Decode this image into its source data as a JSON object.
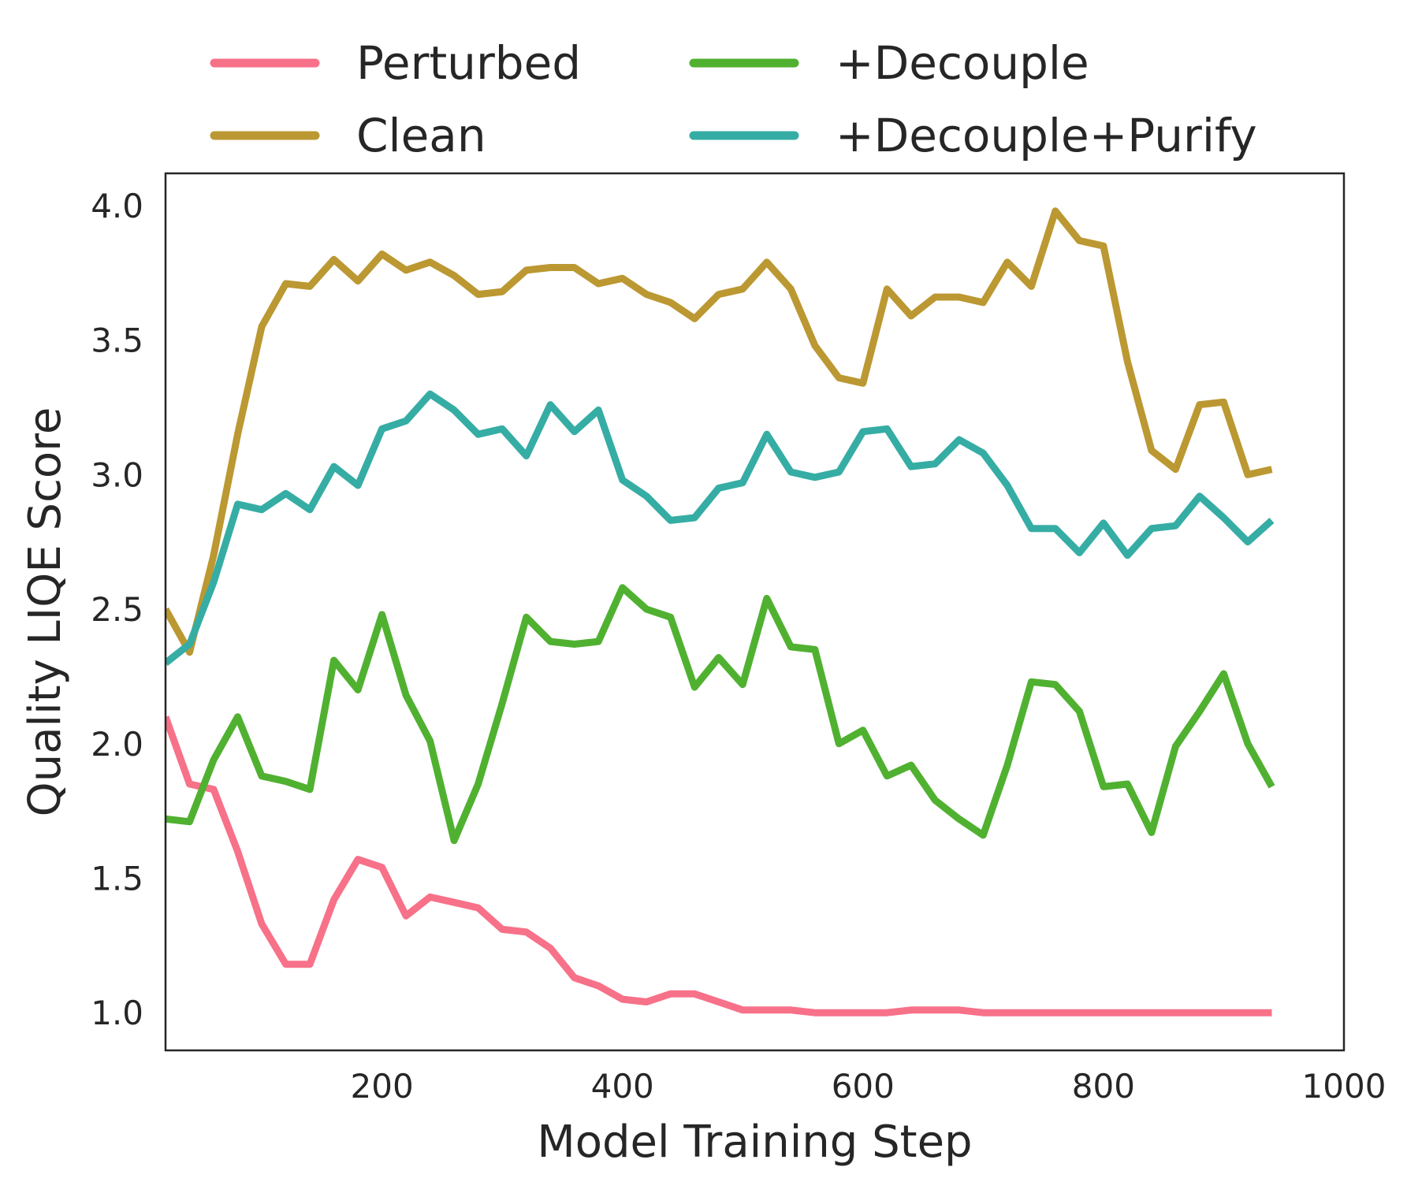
{
  "chart_data": {
    "type": "line",
    "title": "",
    "xlabel": "Model Training Step",
    "ylabel": "Quality LIQE Score",
    "xlim": [
      20,
      1000
    ],
    "ylim": [
      0.86,
      4.12
    ],
    "xticks": [
      200,
      400,
      600,
      800,
      1000
    ],
    "xtick_labels": [
      "200",
      "400",
      "600",
      "800",
      "1000"
    ],
    "yticks": [
      1.0,
      1.5,
      2.0,
      2.5,
      3.0,
      3.5,
      4.0
    ],
    "ytick_labels": [
      "1.0",
      "1.5",
      "2.0",
      "2.5",
      "3.0",
      "3.5",
      "4.0"
    ],
    "grid": false,
    "legend_position": "top, above plot, 2 columns",
    "x": [
      20,
      40,
      60,
      80,
      100,
      120,
      140,
      160,
      180,
      200,
      220,
      240,
      260,
      280,
      300,
      320,
      340,
      360,
      380,
      400,
      420,
      440,
      460,
      480,
      500,
      520,
      540,
      560,
      580,
      600,
      620,
      640,
      660,
      680,
      700,
      720,
      740,
      760,
      780,
      800,
      820,
      840,
      860,
      880,
      900,
      920,
      940
    ],
    "series": [
      {
        "name": "Perturbed",
        "color": "#f77189",
        "values": [
          2.1,
          1.85,
          1.83,
          1.6,
          1.33,
          1.18,
          1.18,
          1.42,
          1.57,
          1.54,
          1.36,
          1.43,
          1.41,
          1.39,
          1.31,
          1.3,
          1.24,
          1.13,
          1.1,
          1.05,
          1.04,
          1.07,
          1.07,
          1.04,
          1.01,
          1.01,
          1.01,
          1.0,
          1.0,
          1.0,
          1.0,
          1.01,
          1.01,
          1.01,
          1.0,
          1.0,
          1.0,
          1.0,
          1.0,
          1.0,
          1.0,
          1.0,
          1.0,
          1.0,
          1.0,
          1.0,
          1.0
        ]
      },
      {
        "name": "Clean",
        "color": "#bb9832",
        "values": [
          2.5,
          2.34,
          2.7,
          3.15,
          3.55,
          3.71,
          3.7,
          3.8,
          3.72,
          3.82,
          3.76,
          3.79,
          3.74,
          3.67,
          3.68,
          3.76,
          3.77,
          3.77,
          3.71,
          3.73,
          3.67,
          3.64,
          3.58,
          3.67,
          3.69,
          3.79,
          3.69,
          3.48,
          3.36,
          3.34,
          3.69,
          3.59,
          3.66,
          3.66,
          3.64,
          3.79,
          3.7,
          3.98,
          3.87,
          3.85,
          3.42,
          3.09,
          3.02,
          3.26,
          3.27,
          3.0,
          3.02
        ]
      },
      {
        "name": "+Decouple",
        "color": "#50b131",
        "values": [
          1.72,
          1.71,
          1.94,
          2.1,
          1.88,
          1.86,
          1.83,
          2.31,
          2.2,
          2.48,
          2.18,
          2.01,
          1.64,
          1.85,
          2.15,
          2.47,
          2.38,
          2.37,
          2.38,
          2.58,
          2.5,
          2.47,
          2.21,
          2.32,
          2.22,
          2.54,
          2.36,
          2.35,
          2.0,
          2.05,
          1.88,
          1.92,
          1.79,
          1.72,
          1.66,
          1.92,
          2.23,
          2.22,
          2.12,
          1.84,
          1.85,
          1.67,
          1.99,
          2.12,
          2.26,
          2.0,
          1.84
        ]
      },
      {
        "name": "+Decouple+Purify",
        "color": "#36ada4",
        "values": [
          2.3,
          2.37,
          2.6,
          2.89,
          2.87,
          2.93,
          2.87,
          3.03,
          2.96,
          3.17,
          3.2,
          3.3,
          3.24,
          3.15,
          3.17,
          3.07,
          3.26,
          3.16,
          3.24,
          2.98,
          2.92,
          2.83,
          2.84,
          2.95,
          2.97,
          3.15,
          3.01,
          2.99,
          3.01,
          3.16,
          3.17,
          3.03,
          3.04,
          3.13,
          3.08,
          2.96,
          2.8,
          2.8,
          2.71,
          2.82,
          2.7,
          2.8,
          2.81,
          2.92,
          2.84,
          2.75,
          2.83
        ]
      }
    ]
  }
}
